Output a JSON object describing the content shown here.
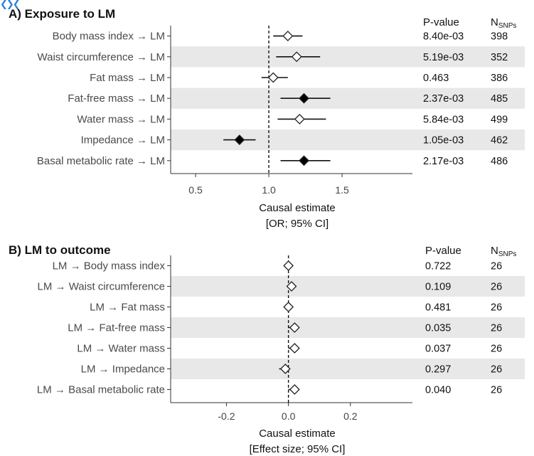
{
  "corner_glyph": "❮❯❮",
  "chart_data": [
    {
      "type": "forest",
      "panel_title": "A) Exposure to LM",
      "xlabel": "Causal estimate",
      "xlabel_sub": "[OR; 95% CI]",
      "xlim": [
        0.33,
        1.98
      ],
      "xticks": [
        0.5,
        1.0,
        1.5
      ],
      "xtick_labels": [
        "0.5",
        "1.0",
        "1.5"
      ],
      "ref_line": 1.0,
      "col_pvalue_header": "P-value",
      "col_n_header_main": "N",
      "col_n_header_sub": "SNPs",
      "rows": [
        {
          "label": "Body mass index → LM",
          "est": 1.13,
          "lo": 1.03,
          "hi": 1.23,
          "significant": false,
          "pvalue": "8.40e-03",
          "n": "398"
        },
        {
          "label": "Waist circumference → LM",
          "est": 1.19,
          "lo": 1.05,
          "hi": 1.35,
          "significant": false,
          "pvalue": "5.19e-03",
          "n": "352"
        },
        {
          "label": "Fat mass → LM",
          "est": 1.03,
          "lo": 0.95,
          "hi": 1.13,
          "significant": false,
          "pvalue": "0.463",
          "n": "386"
        },
        {
          "label": "Fat-free mass → LM",
          "est": 1.24,
          "lo": 1.08,
          "hi": 1.42,
          "significant": true,
          "pvalue": "2.37e-03",
          "n": "485"
        },
        {
          "label": "Water mass → LM",
          "est": 1.21,
          "lo": 1.06,
          "hi": 1.39,
          "significant": false,
          "pvalue": "5.84e-03",
          "n": "499"
        },
        {
          "label": "Impedance → LM",
          "est": 0.8,
          "lo": 0.69,
          "hi": 0.91,
          "significant": true,
          "pvalue": "1.05e-03",
          "n": "462"
        },
        {
          "label": "Basal metabolic rate → LM",
          "est": 1.24,
          "lo": 1.08,
          "hi": 1.42,
          "significant": true,
          "pvalue": "2.17e-03",
          "n": "486"
        }
      ]
    },
    {
      "type": "forest",
      "panel_title": "B) LM to outcome",
      "xlabel": "Causal estimate",
      "xlabel_sub": "[Effect size; 95% CI]",
      "xlim": [
        -0.38,
        0.4
      ],
      "xticks": [
        -0.2,
        0.0,
        0.2
      ],
      "xtick_labels": [
        "-0.2",
        "0.0",
        "0.2"
      ],
      "ref_line": 0.0,
      "col_pvalue_header": "P-value",
      "col_n_header_main": "N",
      "col_n_header_sub": "SNPs",
      "rows": [
        {
          "label": "LM → Body mass index",
          "est": 0.0,
          "lo": -0.01,
          "hi": 0.01,
          "significant": false,
          "pvalue": "0.722",
          "n": "26"
        },
        {
          "label": "LM → Waist circumference",
          "est": 0.01,
          "lo": 0.0,
          "hi": 0.02,
          "significant": false,
          "pvalue": "0.109",
          "n": "26"
        },
        {
          "label": "LM → Fat mass",
          "est": 0.0,
          "lo": -0.01,
          "hi": 0.01,
          "significant": false,
          "pvalue": "0.481",
          "n": "26"
        },
        {
          "label": "LM → Fat-free mass",
          "est": 0.02,
          "lo": 0.0,
          "hi": 0.03,
          "significant": false,
          "pvalue": "0.035",
          "n": "26"
        },
        {
          "label": "LM → Water mass",
          "est": 0.02,
          "lo": 0.0,
          "hi": 0.03,
          "significant": false,
          "pvalue": "0.037",
          "n": "26"
        },
        {
          "label": "LM → Impedance",
          "est": -0.01,
          "lo": -0.03,
          "hi": 0.0,
          "significant": false,
          "pvalue": "0.297",
          "n": "26"
        },
        {
          "label": "LM → Basal metabolic rate",
          "est": 0.02,
          "lo": 0.0,
          "hi": 0.03,
          "significant": false,
          "pvalue": "0.040",
          "n": "26"
        }
      ]
    }
  ]
}
